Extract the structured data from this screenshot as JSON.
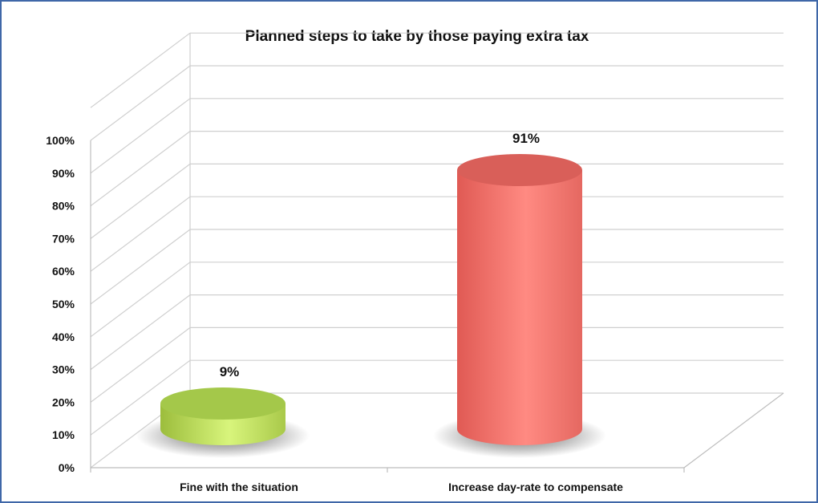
{
  "chart_data": {
    "type": "bar",
    "style": "3d-cylinder",
    "title": "Planned steps to take by those paying extra tax",
    "categories": [
      "Fine with the situation",
      "Increase day-rate to compensate"
    ],
    "values": [
      9,
      91
    ],
    "data_labels": [
      "9%",
      "91%"
    ],
    "colors": [
      "#c6e36a",
      "#f47a72"
    ],
    "ylim": [
      0,
      100
    ],
    "yticks": [
      "0%",
      "10%",
      "20%",
      "30%",
      "40%",
      "50%",
      "60%",
      "70%",
      "80%",
      "90%",
      "100%"
    ],
    "xlabel": "",
    "ylabel": "",
    "grid": true,
    "legend": "none"
  }
}
